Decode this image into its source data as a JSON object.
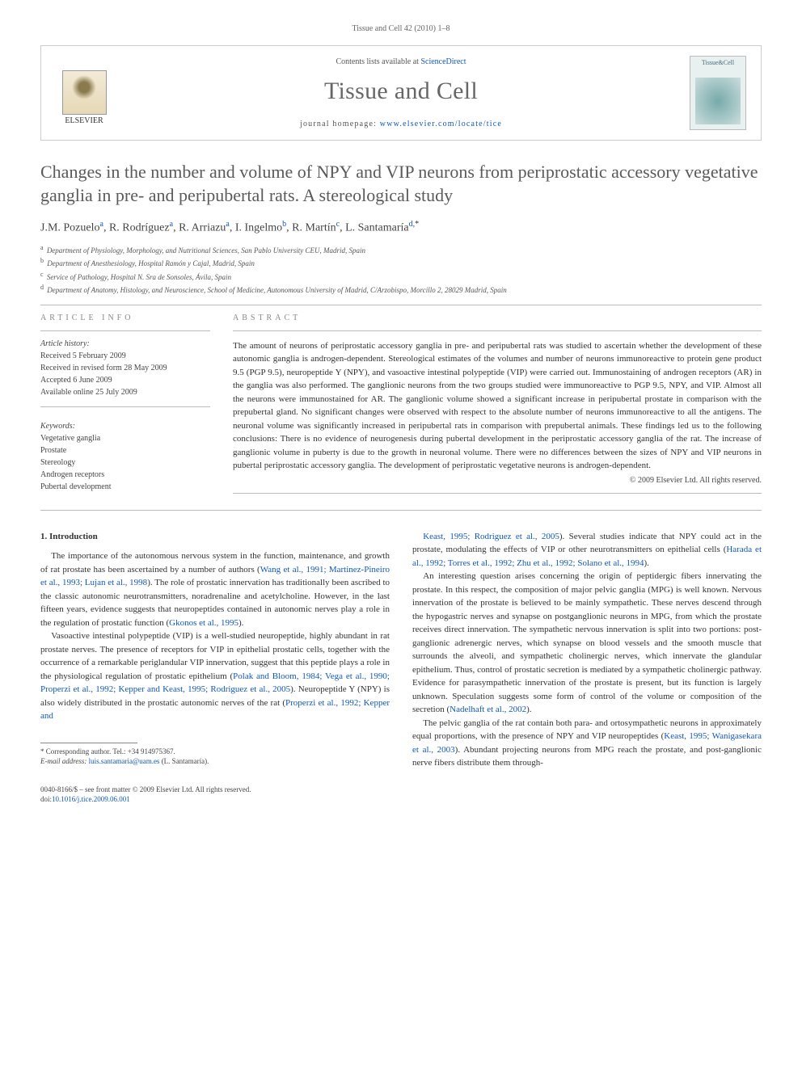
{
  "running_head": "Tissue and Cell 42 (2010) 1–8",
  "header": {
    "contents_prefix": "Contents lists available at ",
    "contents_link": "ScienceDirect",
    "journal_title": "Tissue and Cell",
    "homepage_prefix": "journal homepage: ",
    "homepage_link": "www.elsevier.com/locate/tice",
    "publisher_name": "ELSEVIER",
    "cover_label": "Tissue&Cell"
  },
  "article": {
    "title": "Changes in the number and volume of NPY and VIP neurons from periprostatic accessory vegetative ganglia in pre- and peripubertal rats. A stereological study",
    "authors_html": "J.M. Pozuelo<sup>a</sup>, R. Rodríguez<sup>a</sup>, R. Arriazu<sup>a</sup>, I. Ingelmo<sup>b</sup>, R. Martín<sup>c</sup>, L. Santamaría<sup>d,</sup><sup class=\"ast\">*</sup>",
    "affiliations": [
      {
        "sup": "a",
        "text": "Department of Physiology, Morphology, and Nutritional Sciences, San Pablo University CEU, Madrid, Spain"
      },
      {
        "sup": "b",
        "text": "Department of Anesthesiology, Hospital Ramón y Cajal, Madrid, Spain"
      },
      {
        "sup": "c",
        "text": "Service of Pathology, Hospital N. Sra de Sonsoles, Ávila, Spain"
      },
      {
        "sup": "d",
        "text": "Department of Anatomy, Histology, and Neuroscience, School of Medicine, Autonomous University of Madrid, C/Arzobispo, Morcillo 2, 28029 Madrid, Spain"
      }
    ]
  },
  "info": {
    "article_info_label": "ARTICLE INFO",
    "abstract_label": "ABSTRACT",
    "history_label": "Article history:",
    "history": [
      "Received 5 February 2009",
      "Received in revised form 28 May 2009",
      "Accepted 6 June 2009",
      "Available online 25 July 2009"
    ],
    "keywords_label": "Keywords:",
    "keywords": [
      "Vegetative ganglia",
      "Prostate",
      "Stereology",
      "Androgen receptors",
      "Pubertal development"
    ]
  },
  "abstract": "The amount of neurons of periprostatic accessory ganglia in pre- and peripubertal rats was studied to ascertain whether the development of these autonomic ganglia is androgen-dependent. Stereological estimates of the volumes and number of neurons immunoreactive to protein gene product 9.5 (PGP 9.5), neuropeptide Y (NPY), and vasoactive intestinal polypeptide (VIP) were carried out. Immunostaining of androgen receptors (AR) in the ganglia was also performed. The ganglionic neurons from the two groups studied were immunoreactive to PGP 9.5, NPY, and VIP. Almost all the neurons were immunostained for AR. The ganglionic volume showed a significant increase in peripubertal prostate in comparison with the prepubertal gland. No significant changes were observed with respect to the absolute number of neurons immunoreactive to all the antigens. The neuronal volume was significantly increased in peripubertal rats in comparison with prepubertal animals. These findings led us to the following conclusions: There is no evidence of neurogenesis during pubertal development in the periprostatic accessory ganglia of the rat. The increase of ganglionic volume in puberty is due to the growth in neuronal volume. There were no differences between the sizes of NPY and VIP neurons in pubertal periprostatic accessory ganglia. The development of periprostatic vegetative neurons is androgen-dependent.",
  "copyright": "© 2009 Elsevier Ltd. All rights reserved.",
  "body": {
    "section_number": "1.",
    "section_title": "Introduction",
    "left": [
      "The importance of the autonomous nervous system in the function, maintenance, and growth of rat prostate has been ascertained by a number of authors (<span class=\"cite\">Wang et al., 1991; Martinez-Pineiro et al., 1993; Lujan et al., 1998</span>). The role of prostatic innervation has traditionally been ascribed to the classic autonomic neurotransmitters, noradrenaline and acetylcholine. However, in the last fifteen years, evidence suggests that neuropeptides contained in autonomic nerves play a role in the regulation of prostatic function (<span class=\"cite\">Gkonos et al., 1995</span>).",
      "Vasoactive intestinal polypeptide (VIP) is a well-studied neuropeptide, highly abundant in rat prostate nerves. The presence of receptors for VIP in epithelial prostatic cells, together with the occurrence of a remarkable periglandular VIP innervation, suggest that this peptide plays a role in the physiological regulation of prostatic epithelium (<span class=\"cite\">Polak and Bloom, 1984; Vega et al., 1990; Properzi et al., 1992; Kepper and Keast, 1995; Rodriguez et al., 2005</span>). Neuropeptide Y (NPY) is also widely distributed in the prostatic autonomic nerves of the rat (<span class=\"cite\">Properzi et al., 1992; Kepper and</span>"
    ],
    "right": [
      "<span class=\"cite\">Keast, 1995; Rodriguez et al., 2005</span>). Several studies indicate that NPY could act in the prostate, modulating the effects of VIP or other neurotransmitters on epithelial cells (<span class=\"cite\">Harada et al., 1992; Torres et al., 1992; Zhu et al., 1992; Solano et al., 1994</span>).",
      "An interesting question arises concerning the origin of peptidergic fibers innervating the prostate. In this respect, the composition of major pelvic ganglia (MPG) is well known. Nervous innervation of the prostate is believed to be mainly sympathetic. These nerves descend through the hypogastric nerves and synapse on postganglionic neurons in MPG, from which the prostate receives direct innervation. The sympathetic nervous innervation is split into two portions: post-ganglionic adrenergic nerves, which synapse on blood vessels and the smooth muscle that surrounds the alveoli, and sympathetic cholinergic nerves, which innervate the glandular epithelium. Thus, control of prostatic secretion is mediated by a sympathetic cholinergic pathway. Evidence for parasympathetic innervation of the prostate is present, but its function is largely unknown. Speculation suggests some form of control of the volume or composition of the secretion (<span class=\"cite\">Nadelhaft et al., 2002</span>).",
      "The pelvic ganglia of the rat contain both para- and ortosympathetic neurons in approximately equal proportions, with the presence of NPY and VIP neuropeptides (<span class=\"cite\">Keast, 1995; Wanigasekara et al., 2003</span>). Abundant projecting neurons from MPG reach the prostate, and post-ganglionic nerve fibers distribute them through-"
    ]
  },
  "footnote": {
    "corr_label": "* Corresponding author. Tel.: +34 914975367.",
    "email_label": "E-mail address: ",
    "email": "luis.santamaria@uam.es",
    "email_who": " (L. Santamaría)."
  },
  "bottom": {
    "line1": "0040-8166/$ – see front matter © 2009 Elsevier Ltd. All rights reserved.",
    "doi_prefix": "doi:",
    "doi": "10.1016/j.tice.2009.06.001"
  }
}
